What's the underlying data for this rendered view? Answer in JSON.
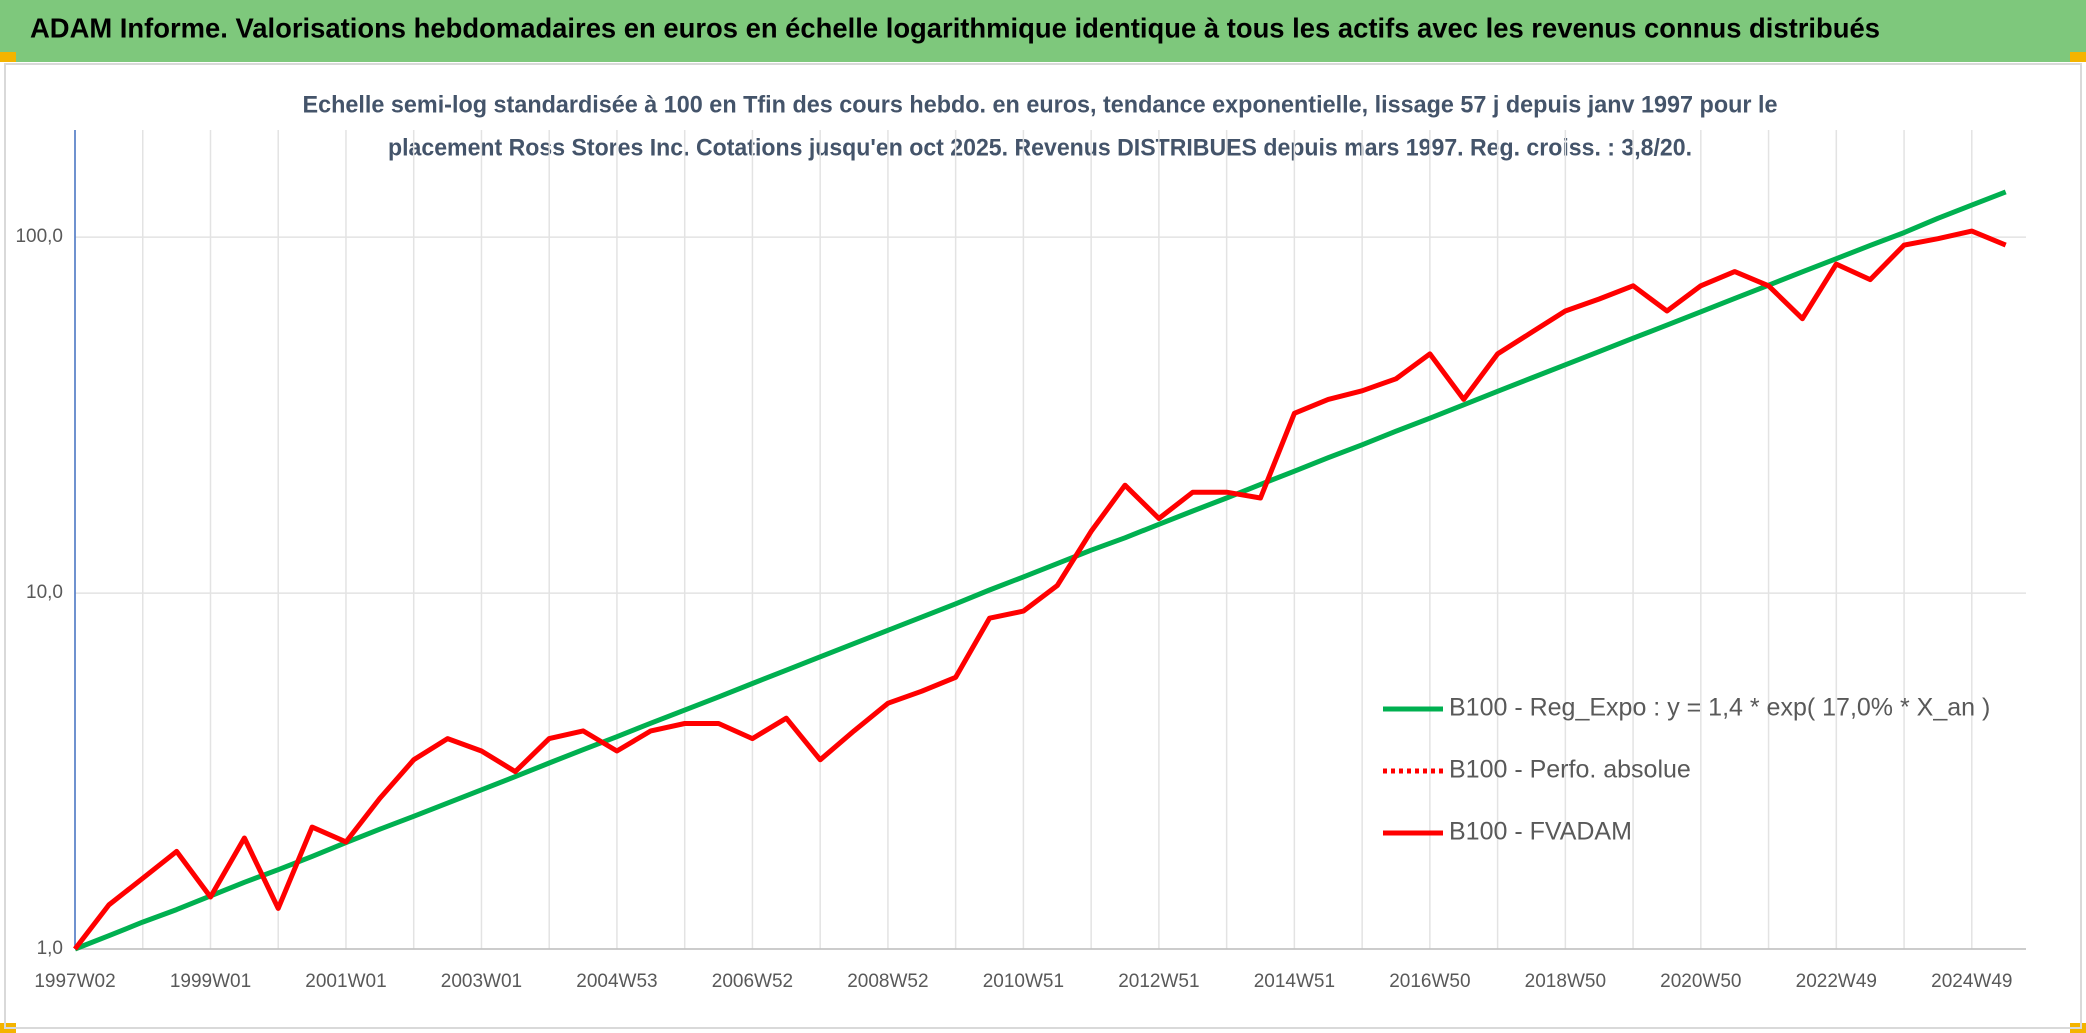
{
  "chart_data": {
    "type": "line",
    "title": "ADAM Informe. Valorisations hebdomadaires en euros en échelle logarithmique identique à tous les actifs avec les revenus connus distribués",
    "subtitle": [
      "Echelle semi-log standardisée à 100 en Tfin des cours hebdo. en euros, tendance exponentielle, lissage 57 j depuis janv 1997 pour le",
      "placement Ross Stores Inc. Cotations jusqu'en oct 2025. Revenus DISTRIBUES depuis mars 1997. Reg. croiss. : 3,8/20."
    ],
    "categories": [
      "1997W02",
      null,
      null,
      null,
      "1999W01",
      null,
      null,
      null,
      "2001W01",
      null,
      null,
      null,
      "2003W01",
      null,
      null,
      null,
      "2004W53",
      null,
      null,
      null,
      "2006W52",
      null,
      null,
      null,
      "2008W52",
      null,
      null,
      null,
      "2010W51",
      null,
      null,
      null,
      "2012W51",
      null,
      null,
      null,
      "2014W51",
      null,
      null,
      null,
      "2016W50",
      null,
      null,
      null,
      "2018W50",
      null,
      null,
      null,
      "2020W50",
      null,
      null,
      null,
      "2022W49",
      null,
      null,
      null,
      "2024W49",
      null
    ],
    "log_y": true,
    "ylim": [
      1,
      200
    ],
    "yticks": [
      {
        "value": 1,
        "label": "1,0"
      },
      {
        "value": 10,
        "label": "10,0"
      },
      {
        "value": 100,
        "label": "100,0"
      }
    ],
    "grid": true,
    "legend": "right",
    "series": [
      {
        "name": "B100 - Reg_Expo : y = 1,4 * exp( 17,0% *  X_an )",
        "color": "#00b050",
        "style": "solid",
        "values": [
          1.0,
          1.09,
          1.19,
          1.29,
          1.41,
          1.54,
          1.67,
          1.82,
          1.99,
          2.17,
          2.36,
          2.57,
          2.8,
          3.05,
          3.33,
          3.63,
          3.95,
          4.31,
          4.69,
          5.11,
          5.57,
          6.07,
          6.62,
          7.21,
          7.86,
          8.56,
          9.33,
          10.2,
          11.1,
          12.1,
          13.2,
          14.3,
          15.6,
          17.0,
          18.5,
          20.2,
          22.0,
          24.0,
          26.1,
          28.5,
          31.0,
          33.8,
          36.9,
          40.2,
          43.8,
          47.7,
          52.0,
          56.6,
          61.7,
          67.3,
          73.3,
          79.9,
          87.0,
          94.8,
          103,
          113,
          123,
          134
        ]
      },
      {
        "name": "B100 - Perfo. absolue",
        "color": "#ff0000",
        "style": "dotted",
        "values": [
          null,
          null,
          null,
          null,
          null,
          null,
          null,
          null,
          null,
          null,
          null,
          null,
          null,
          null,
          null,
          null,
          null,
          null,
          null,
          null,
          null,
          null,
          null,
          null,
          null,
          null,
          null,
          null,
          null,
          null,
          null,
          null,
          null,
          null,
          null,
          null,
          null,
          null,
          null,
          null,
          null,
          null,
          null,
          null,
          null,
          null,
          null,
          null,
          null,
          null,
          null,
          null,
          null,
          null,
          null,
          null,
          null,
          null
        ]
      },
      {
        "name": "B100 - FVADAM",
        "color": "#ff0000",
        "style": "solid",
        "values": [
          1.0,
          1.33,
          1.58,
          1.88,
          1.4,
          2.05,
          1.3,
          2.2,
          2.0,
          2.65,
          3.4,
          3.9,
          3.6,
          3.15,
          3.9,
          4.1,
          3.6,
          4.1,
          4.3,
          4.3,
          3.9,
          4.45,
          3.4,
          4.1,
          4.9,
          5.3,
          5.8,
          8.5,
          8.9,
          10.5,
          14.9,
          20.1,
          16.2,
          19.2,
          19.2,
          18.5,
          32,
          35,
          37,
          40,
          47,
          35,
          47,
          54,
          62,
          67,
          73,
          62,
          73,
          80,
          73,
          59,
          84,
          76,
          95,
          99,
          104,
          95
        ]
      }
    ]
  }
}
